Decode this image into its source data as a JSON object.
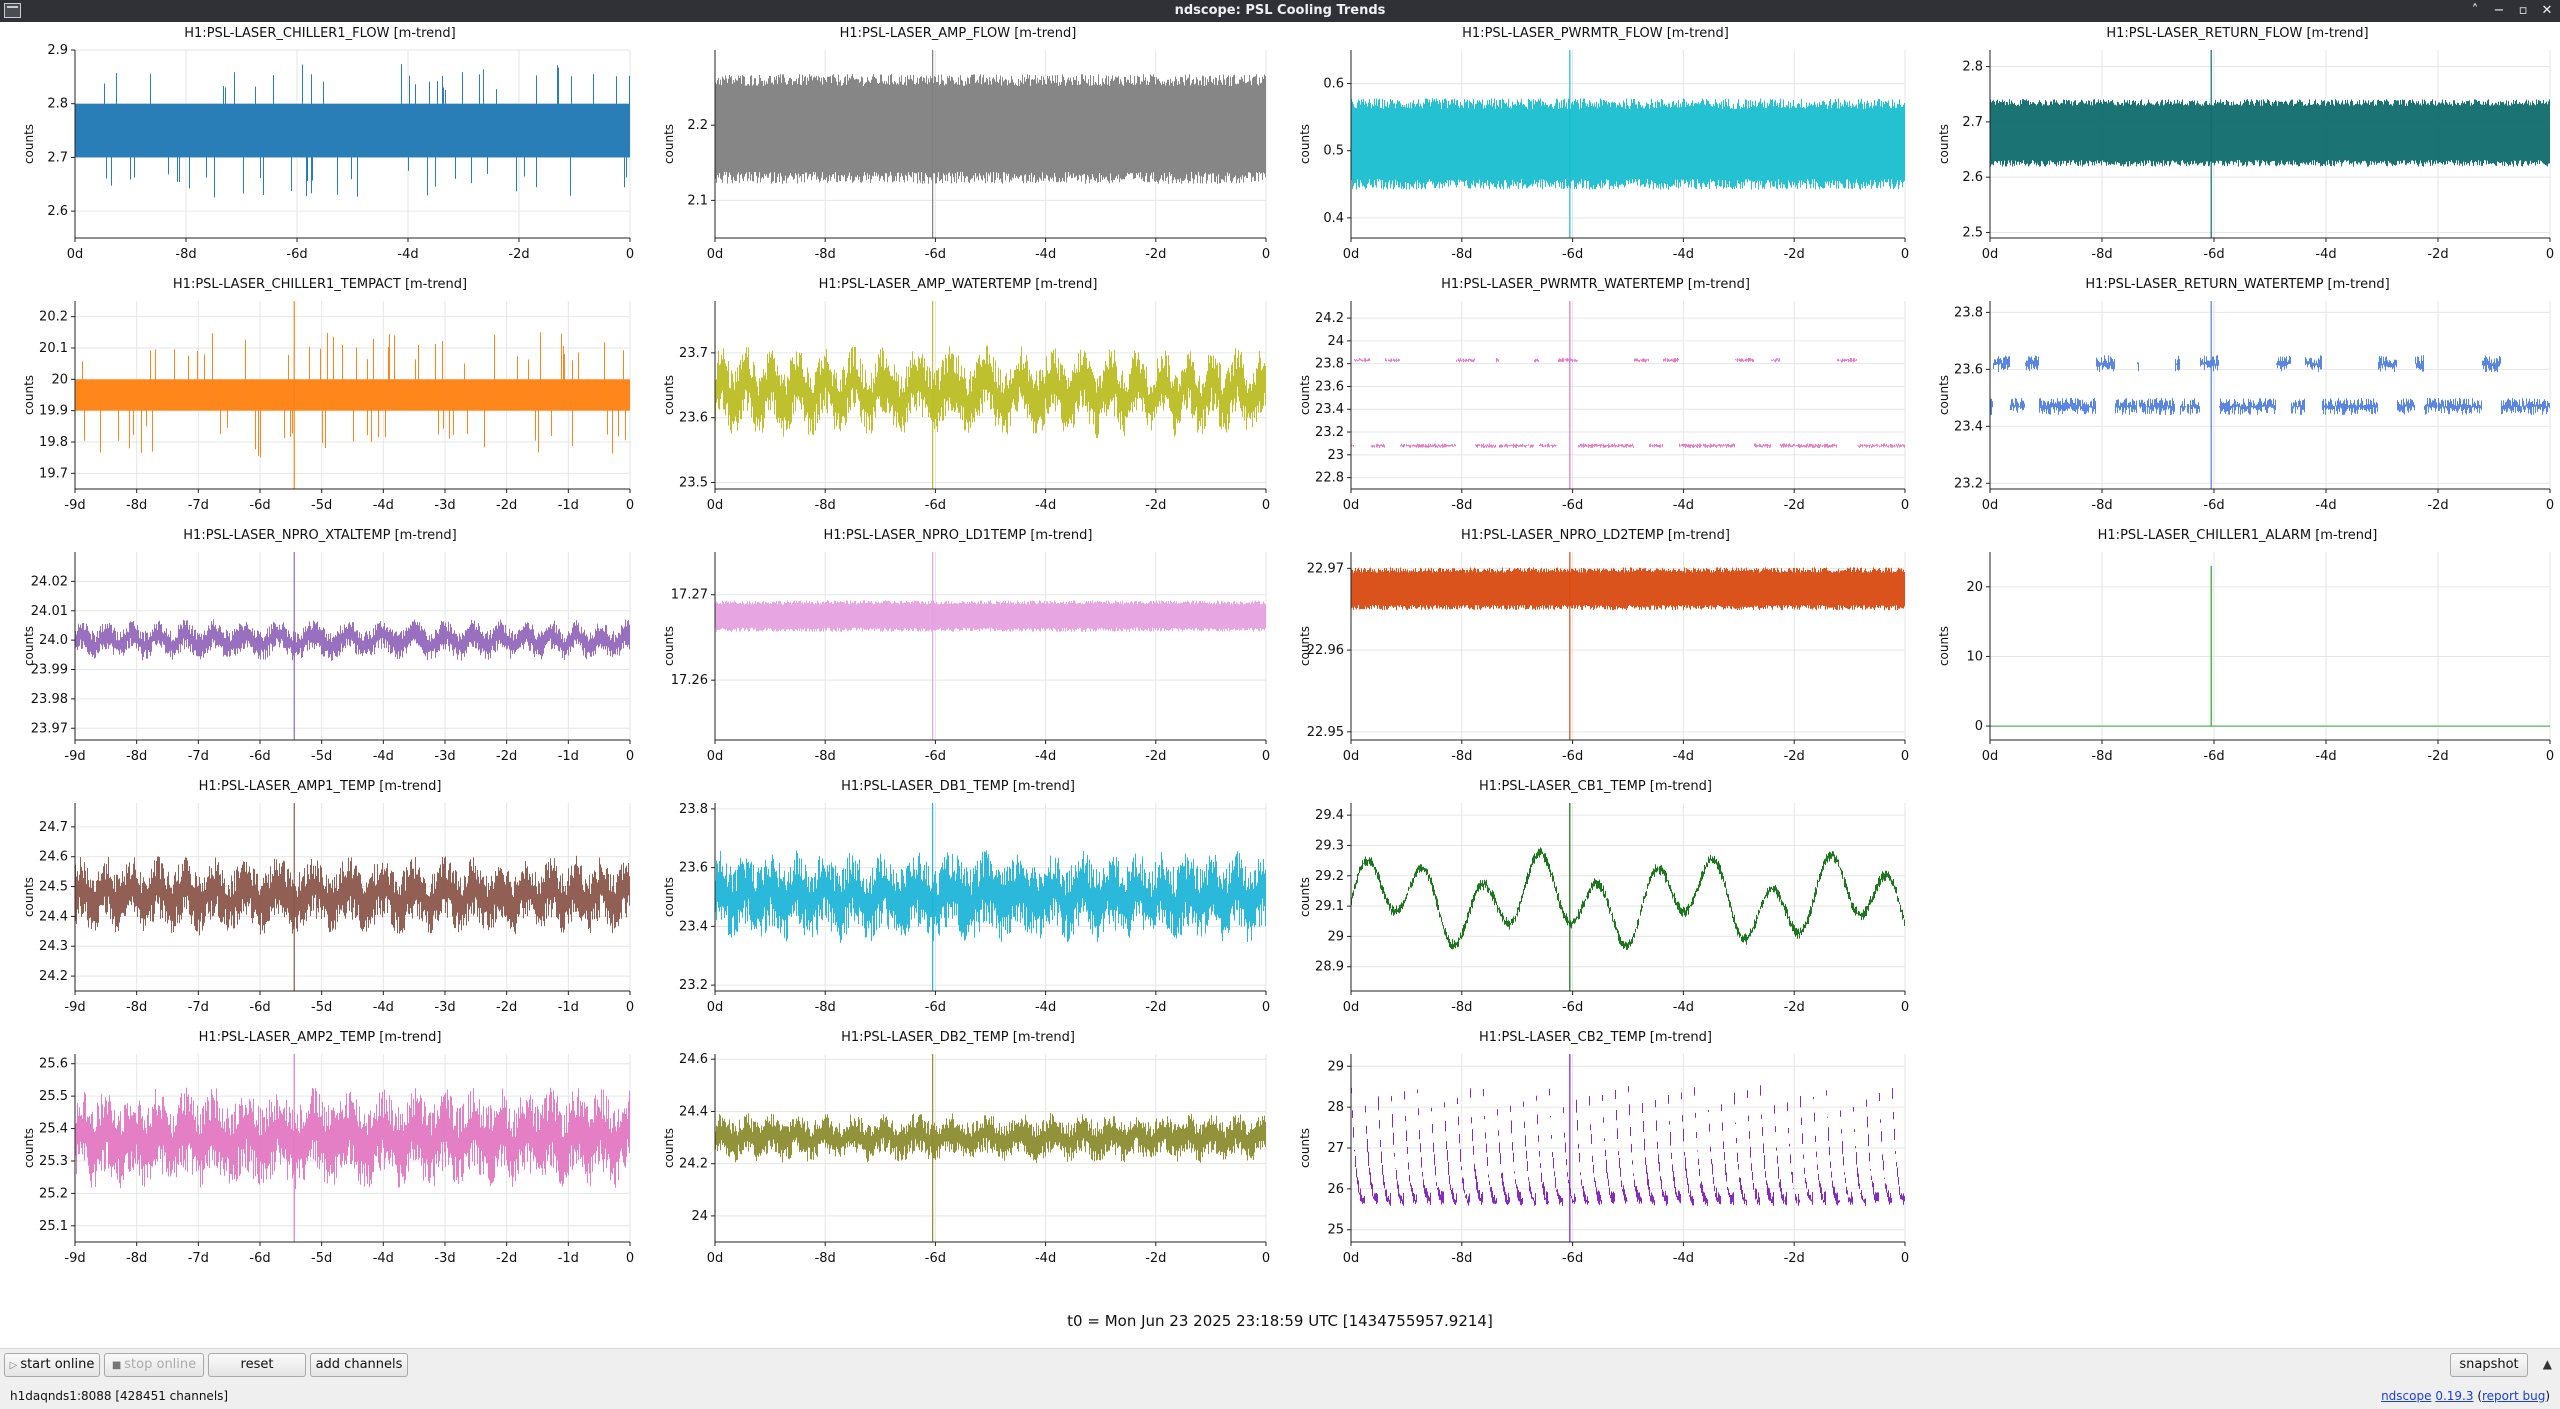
{
  "window": {
    "title": "ndscope: PSL Cooling Trends",
    "controls": [
      "˄",
      "−",
      "▫",
      "✕"
    ]
  },
  "panel_defaults": {
    "ylabel": "counts"
  },
  "chart_data": [
    {
      "type": "line",
      "title": "H1:PSL-LASER_CHILLER1_FLOW [m-trend]",
      "ylabel": "counts",
      "color": "#1f77b4",
      "style": "band",
      "ylim": [
        2.55,
        2.9
      ],
      "yticks": [
        "2.6",
        "2.7",
        "2.8",
        "2.9"
      ],
      "xlim": [
        -10,
        0
      ],
      "xticks": [
        "0d",
        "-8d",
        "-6d",
        "-4d",
        "-2d",
        "0"
      ],
      "center": 2.75,
      "lo": 2.7,
      "hi": 2.8,
      "noise": 0.05,
      "glitch": false
    },
    {
      "type": "line",
      "title": "H1:PSL-LASER_AMP_FLOW [m-trend]",
      "ylabel": "counts",
      "color": "#7f7f7f",
      "style": "multiband",
      "ylim": [
        2.05,
        2.3
      ],
      "yticks": [
        "2.1",
        "2.2"
      ],
      "xlim": [
        -10,
        0
      ],
      "xticks": [
        "0d",
        "-8d",
        "-6d",
        "-4d",
        "-2d",
        "0"
      ],
      "levels": [
        2.15,
        2.2,
        2.24
      ],
      "noise": 0.02,
      "glitch": true
    },
    {
      "type": "line",
      "title": "H1:PSL-LASER_PWRMTR_FLOW [m-trend]",
      "ylabel": "counts",
      "color": "#17becf",
      "style": "multiband",
      "ylim": [
        0.37,
        0.65
      ],
      "yticks": [
        "0.4",
        "0.5",
        "0.6"
      ],
      "xlim": [
        -10,
        0
      ],
      "xticks": [
        "0d",
        "-8d",
        "-6d",
        "-4d",
        "-2d",
        "0"
      ],
      "levels": [
        0.47,
        0.51,
        0.55
      ],
      "noise": 0.02,
      "glitch": true
    },
    {
      "type": "line",
      "title": "H1:PSL-LASER_RETURN_FLOW [m-trend]",
      "ylabel": "counts",
      "color": "#0f6b6b",
      "style": "multiband",
      "ylim": [
        2.49,
        2.83
      ],
      "yticks": [
        "2.5",
        "2.6",
        "2.7",
        "2.8"
      ],
      "xlim": [
        -10,
        0
      ],
      "xticks": [
        "0d",
        "-8d",
        "-6d",
        "-4d",
        "-2d",
        "0"
      ],
      "levels": [
        2.64,
        2.68,
        2.72
      ],
      "noise": 0.015,
      "glitch": true
    },
    {
      "type": "line",
      "title": "H1:PSL-LASER_CHILLER1_TEMPACT [m-trend]",
      "ylabel": "counts",
      "color": "#ff7f0e",
      "style": "band",
      "ylim": [
        19.65,
        20.25
      ],
      "yticks": [
        "19.7",
        "19.8",
        "19.9",
        "20",
        "20.1",
        "20.2"
      ],
      "xlim": [
        -10,
        0
      ],
      "xticks": [
        "-9d",
        "-8d",
        "-7d",
        "-6d",
        "-5d",
        "-4d",
        "-3d",
        "-2d",
        "-1d",
        "0"
      ],
      "center": 19.95,
      "lo": 19.9,
      "hi": 20.0,
      "noise": 0.1,
      "glitch": true
    },
    {
      "type": "line",
      "title": "H1:PSL-LASER_AMP_WATERTEMP [m-trend]",
      "ylabel": "counts",
      "color": "#bcbd22",
      "style": "noisy",
      "ylim": [
        23.49,
        23.78
      ],
      "yticks": [
        "23.5",
        "23.6",
        "23.7"
      ],
      "xlim": [
        -10,
        0
      ],
      "xticks": [
        "0d",
        "-8d",
        "-6d",
        "-4d",
        "-2d",
        "0"
      ],
      "center": 23.64,
      "noise": 0.04,
      "wave": 0.02,
      "glitch": true
    },
    {
      "type": "line",
      "title": "H1:PSL-LASER_PWRMTR_WATERTEMP [m-trend]",
      "ylabel": "counts",
      "color": "#e377c2",
      "style": "square",
      "ylim": [
        22.7,
        24.35
      ],
      "yticks": [
        "22.8",
        "23",
        "23.2",
        "23.4",
        "23.6",
        "23.8",
        "24",
        "24.2"
      ],
      "xlim": [
        -10,
        0
      ],
      "xticks": [
        "0d",
        "-8d",
        "-6d",
        "-4d",
        "-2d",
        "0"
      ],
      "low": 23.08,
      "high": 23.83,
      "noise": 0.02,
      "glitch": true
    },
    {
      "type": "line",
      "title": "H1:PSL-LASER_RETURN_WATERTEMP [m-trend]",
      "ylabel": "counts",
      "color": "#4f7fe0",
      "style": "square",
      "ylim": [
        23.18,
        23.84
      ],
      "yticks": [
        "23.2",
        "23.4",
        "23.6",
        "23.8"
      ],
      "xlim": [
        -10,
        0
      ],
      "xticks": [
        "0d",
        "-8d",
        "-6d",
        "-4d",
        "-2d",
        "0"
      ],
      "low": 23.47,
      "high": 23.62,
      "noise": 0.03,
      "glitch": true
    },
    {
      "type": "line",
      "title": "H1:PSL-LASER_NPRO_XTALTEMP [m-trend]",
      "ylabel": "counts",
      "color": "#9467bd",
      "style": "noisy",
      "ylim": [
        23.966,
        24.03
      ],
      "yticks": [
        "23.97",
        "23.98",
        "23.99",
        "24.0",
        "24.01",
        "24.02"
      ],
      "xlim": [
        -10,
        0
      ],
      "xticks": [
        "-9d",
        "-8d",
        "-7d",
        "-6d",
        "-5d",
        "-4d",
        "-3d",
        "-2d",
        "-1d",
        "0"
      ],
      "center": 24.0,
      "noise": 0.004,
      "wave": 0.002,
      "glitch": true
    },
    {
      "type": "line",
      "title": "H1:PSL-LASER_NPRO_LD1TEMP [m-trend]",
      "ylabel": "counts",
      "color": "#e6a0e0",
      "style": "multiband",
      "ylim": [
        17.253,
        17.275
      ],
      "yticks": [
        "17.26",
        "17.27"
      ],
      "xlim": [
        -10,
        0
      ],
      "xticks": [
        "0d",
        "-8d",
        "-6d",
        "-4d",
        "-2d",
        "0"
      ],
      "levels": [
        17.2665,
        17.2685
      ],
      "noise": 0.0006,
      "glitch": true
    },
    {
      "type": "line",
      "title": "H1:PSL-LASER_NPRO_LD2TEMP [m-trend]",
      "ylabel": "counts",
      "color": "#d94a10",
      "style": "multiband",
      "ylim": [
        22.949,
        22.972
      ],
      "yticks": [
        "22.95",
        "22.96",
        "22.97"
      ],
      "xlim": [
        -10,
        0
      ],
      "xticks": [
        "0d",
        "-8d",
        "-6d",
        "-4d",
        "-2d",
        "0"
      ],
      "levels": [
        22.966,
        22.9675,
        22.969
      ],
      "noise": 0.0008,
      "glitch": true
    },
    {
      "type": "line",
      "title": "H1:PSL-LASER_CHILLER1_ALARM [m-trend]",
      "ylabel": "counts",
      "color": "#2ca02c",
      "style": "flat",
      "ylim": [
        -2,
        25
      ],
      "yticks": [
        "0",
        "10",
        "20"
      ],
      "xlim": [
        -10,
        0
      ],
      "xticks": [
        "0d",
        "-8d",
        "-6d",
        "-4d",
        "-2d",
        "0"
      ],
      "center": 0,
      "spike": 23
    },
    {
      "type": "line",
      "title": "H1:PSL-LASER_AMP1_TEMP [m-trend]",
      "ylabel": "counts",
      "color": "#8c564b",
      "style": "noisy",
      "ylim": [
        24.15,
        24.78
      ],
      "yticks": [
        "24.2",
        "24.3",
        "24.4",
        "24.5",
        "24.6",
        "24.7"
      ],
      "xlim": [
        -10,
        0
      ],
      "xticks": [
        "-9d",
        "-8d",
        "-7d",
        "-6d",
        "-5d",
        "-4d",
        "-3d",
        "-2d",
        "-1d",
        "0"
      ],
      "center": 24.47,
      "noise": 0.08,
      "wave": 0.03,
      "glitch": true
    },
    {
      "type": "line",
      "title": "H1:PSL-LASER_DB1_TEMP [m-trend]",
      "ylabel": "counts",
      "color": "#1fb5d8",
      "style": "noisy",
      "ylim": [
        23.18,
        23.82
      ],
      "yticks": [
        "23.2",
        "23.4",
        "23.6",
        "23.8"
      ],
      "xlim": [
        -10,
        0
      ],
      "xticks": [
        "0d",
        "-8d",
        "-6d",
        "-4d",
        "-2d",
        "0"
      ],
      "center": 23.5,
      "noise": 0.1,
      "wave": 0.03,
      "glitch": true
    },
    {
      "type": "line",
      "title": "H1:PSL-LASER_CB1_TEMP [m-trend]",
      "ylabel": "counts",
      "color": "#107010",
      "style": "wander",
      "ylim": [
        28.82,
        29.44
      ],
      "yticks": [
        "28.9",
        "29",
        "29.1",
        "29.2",
        "29.3",
        "29.4"
      ],
      "xlim": [
        -10,
        0
      ],
      "xticks": [
        "0d",
        "-8d",
        "-6d",
        "-4d",
        "-2d",
        "0"
      ],
      "center": 29.12,
      "noise": 0.02,
      "wave": 0.12,
      "glitch": true
    },
    {
      "type": "line",
      "title": "H1:PSL-LASER_AMP2_TEMP [m-trend]",
      "ylabel": "counts",
      "color": "#e377c2",
      "style": "noisy",
      "ylim": [
        25.05,
        25.63
      ],
      "yticks": [
        "25.1",
        "25.2",
        "25.3",
        "25.4",
        "25.5",
        "25.6"
      ],
      "xlim": [
        -10,
        0
      ],
      "xticks": [
        "-9d",
        "-8d",
        "-7d",
        "-6d",
        "-5d",
        "-4d",
        "-3d",
        "-2d",
        "-1d",
        "0"
      ],
      "center": 25.37,
      "noise": 0.1,
      "wave": 0.03,
      "glitch": true
    },
    {
      "type": "line",
      "title": "H1:PSL-LASER_DB2_TEMP [m-trend]",
      "ylabel": "counts",
      "color": "#8c8c30",
      "style": "noisy",
      "ylim": [
        23.9,
        24.62
      ],
      "yticks": [
        "24",
        "24.2",
        "24.4",
        "24.6"
      ],
      "xlim": [
        -10,
        0
      ],
      "xticks": [
        "0d",
        "-8d",
        "-6d",
        "-4d",
        "-2d",
        "0"
      ],
      "center": 24.3,
      "noise": 0.06,
      "wave": 0.02,
      "glitch": true
    },
    {
      "type": "line",
      "title": "H1:PSL-LASER_CB2_TEMP [m-trend]",
      "ylabel": "counts",
      "color": "#7f1fbf",
      "style": "sawtooth",
      "ylim": [
        24.7,
        29.3
      ],
      "yticks": [
        "25",
        "26",
        "27",
        "28",
        "29"
      ],
      "xlim": [
        -10,
        0
      ],
      "xticks": [
        "0d",
        "-8d",
        "-6d",
        "-4d",
        "-2d",
        "0"
      ],
      "low": 25.7,
      "high": 28.4,
      "noise": 0.12,
      "glitch": true
    }
  ],
  "t0": "t0 = Mon Jun 23 2025 23:18:59 UTC [1434755957.9214]",
  "toolbar": {
    "start_online": "start online",
    "stop_online": "stop online",
    "reset": "reset",
    "add_channels": "add channels",
    "snapshot": "snapshot"
  },
  "status": {
    "server": "h1daqnds1:8088",
    "channels": "[428451 channels]",
    "app_name": "ndscope",
    "version": "0.19.3",
    "report_bug": "report bug"
  }
}
